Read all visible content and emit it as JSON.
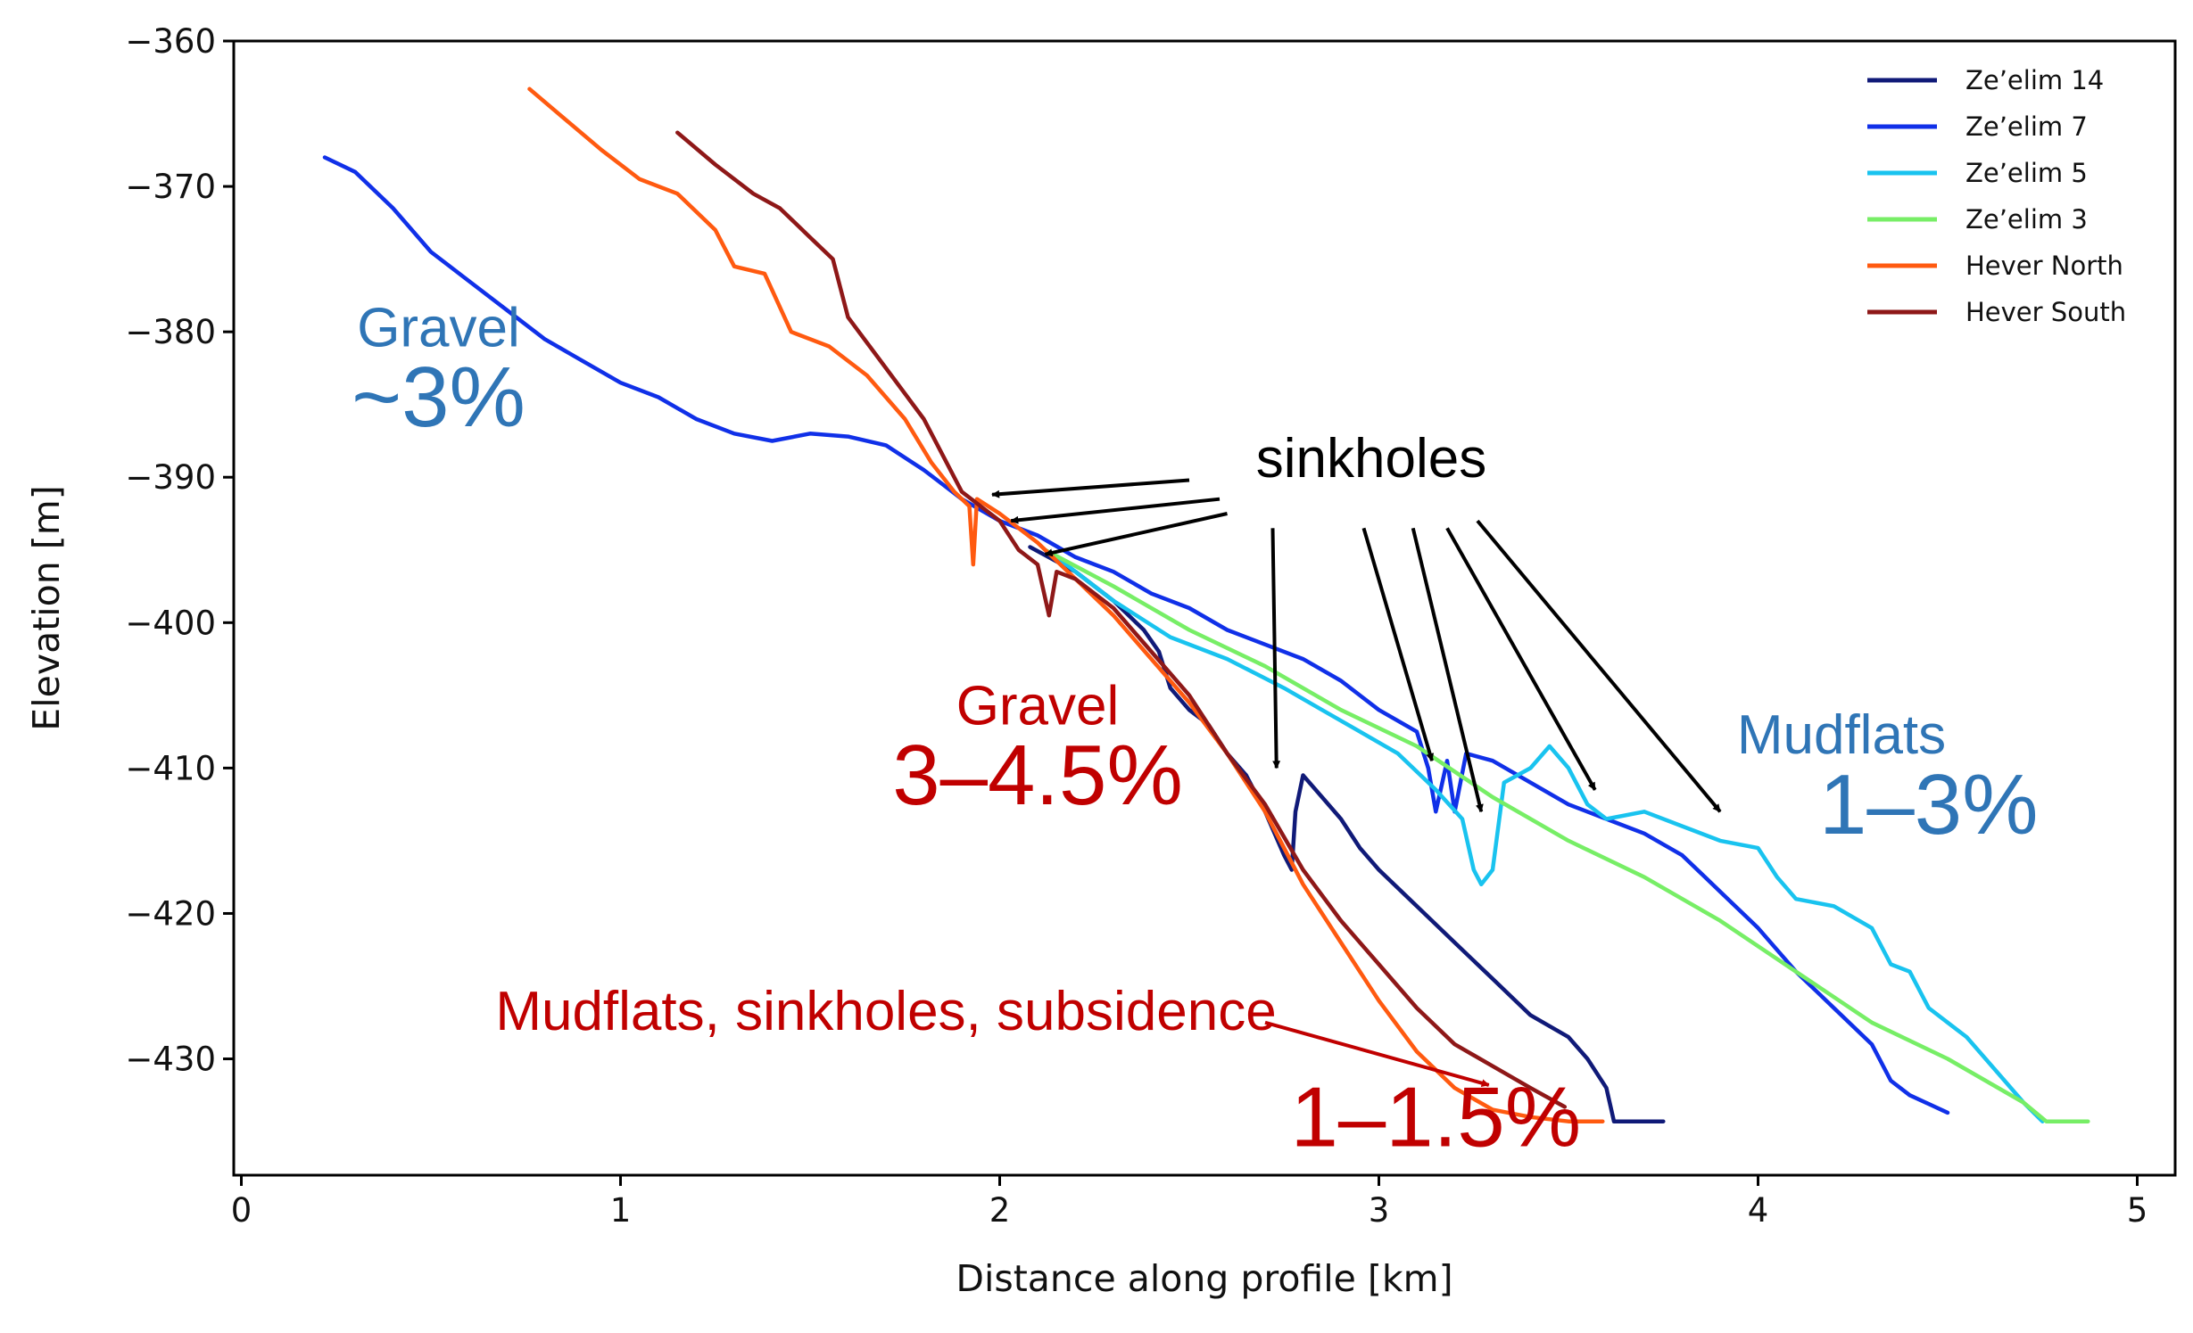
{
  "chart_data": {
    "type": "line",
    "title": "",
    "xlabel": "Distance along profile [km]",
    "ylabel": "Elevation [m]",
    "xlim": [
      -0.02,
      5.1
    ],
    "ylim": [
      -438,
      -360
    ],
    "xticks": [
      0,
      1,
      2,
      3,
      4,
      5
    ],
    "yticks": [
      -360,
      -370,
      -380,
      -390,
      -400,
      -410,
      -420,
      -430
    ],
    "xtick_labels": [
      "0",
      "1",
      "2",
      "3",
      "4",
      "5"
    ],
    "ytick_labels": [
      "−360",
      "−370",
      "−380",
      "−390",
      "−400",
      "−410",
      "−420",
      "−430"
    ],
    "grid": false,
    "legend_position": "top-right",
    "series": [
      {
        "name": "Ze’elim 14",
        "color": "#101a78",
        "points": [
          [
            2.08,
            -394.8
          ],
          [
            2.2,
            -396.5
          ],
          [
            2.3,
            -398.5
          ],
          [
            2.38,
            -400.5
          ],
          [
            2.42,
            -402
          ],
          [
            2.45,
            -404.5
          ],
          [
            2.5,
            -406
          ],
          [
            2.55,
            -407
          ],
          [
            2.6,
            -409
          ],
          [
            2.65,
            -410.5
          ],
          [
            2.7,
            -413
          ],
          [
            2.75,
            -416
          ],
          [
            2.77,
            -417
          ],
          [
            2.78,
            -413
          ],
          [
            2.8,
            -410.5
          ],
          [
            2.85,
            -412
          ],
          [
            2.9,
            -413.5
          ],
          [
            2.95,
            -415.5
          ],
          [
            3.0,
            -417
          ],
          [
            3.1,
            -419.5
          ],
          [
            3.2,
            -422
          ],
          [
            3.3,
            -424.5
          ],
          [
            3.4,
            -427
          ],
          [
            3.5,
            -428.5
          ],
          [
            3.55,
            -430
          ],
          [
            3.6,
            -432
          ],
          [
            3.62,
            -434.3
          ],
          [
            3.7,
            -434.3
          ],
          [
            3.75,
            -434.3
          ]
        ]
      },
      {
        "name": "Ze’elim 7",
        "color": "#1030e8",
        "points": [
          [
            0.22,
            -368
          ],
          [
            0.3,
            -369
          ],
          [
            0.4,
            -371.5
          ],
          [
            0.5,
            -374.5
          ],
          [
            0.6,
            -376.5
          ],
          [
            0.7,
            -378.5
          ],
          [
            0.8,
            -380.5
          ],
          [
            0.9,
            -382
          ],
          [
            1.0,
            -383.5
          ],
          [
            1.1,
            -384.5
          ],
          [
            1.2,
            -386
          ],
          [
            1.3,
            -387
          ],
          [
            1.4,
            -387.5
          ],
          [
            1.5,
            -387
          ],
          [
            1.6,
            -387.2
          ],
          [
            1.7,
            -387.8
          ],
          [
            1.8,
            -389.5
          ],
          [
            1.85,
            -390.5
          ],
          [
            1.9,
            -391.5
          ],
          [
            2.0,
            -393
          ],
          [
            2.1,
            -394
          ],
          [
            2.2,
            -395.5
          ],
          [
            2.3,
            -396.5
          ],
          [
            2.4,
            -398
          ],
          [
            2.5,
            -399
          ],
          [
            2.6,
            -400.5
          ],
          [
            2.7,
            -401.5
          ],
          [
            2.8,
            -402.5
          ],
          [
            2.9,
            -404
          ],
          [
            3.0,
            -406
          ],
          [
            3.1,
            -407.5
          ],
          [
            3.13,
            -410
          ],
          [
            3.15,
            -413
          ],
          [
            3.18,
            -409.5
          ],
          [
            3.2,
            -413
          ],
          [
            3.23,
            -409
          ],
          [
            3.3,
            -409.5
          ],
          [
            3.4,
            -411
          ],
          [
            3.5,
            -412.5
          ],
          [
            3.6,
            -413.5
          ],
          [
            3.7,
            -414.5
          ],
          [
            3.8,
            -416
          ],
          [
            3.9,
            -418.5
          ],
          [
            4.0,
            -421
          ],
          [
            4.1,
            -424
          ],
          [
            4.2,
            -426.5
          ],
          [
            4.3,
            -429
          ],
          [
            4.35,
            -431.5
          ],
          [
            4.4,
            -432.5
          ],
          [
            4.5,
            -433.7
          ]
        ]
      },
      {
        "name": "Ze’elim 5",
        "color": "#19c3ef",
        "points": [
          [
            2.15,
            -395.5
          ],
          [
            2.3,
            -398.5
          ],
          [
            2.45,
            -401
          ],
          [
            2.6,
            -402.5
          ],
          [
            2.75,
            -404.5
          ],
          [
            2.85,
            -406
          ],
          [
            2.95,
            -407.5
          ],
          [
            3.05,
            -409
          ],
          [
            3.15,
            -411.5
          ],
          [
            3.22,
            -413.5
          ],
          [
            3.25,
            -417
          ],
          [
            3.27,
            -418
          ],
          [
            3.3,
            -417
          ],
          [
            3.33,
            -411
          ],
          [
            3.4,
            -410
          ],
          [
            3.45,
            -408.5
          ],
          [
            3.5,
            -410
          ],
          [
            3.55,
            -412.5
          ],
          [
            3.6,
            -413.5
          ],
          [
            3.7,
            -413
          ],
          [
            3.8,
            -414
          ],
          [
            3.9,
            -415
          ],
          [
            4.0,
            -415.5
          ],
          [
            4.05,
            -417.5
          ],
          [
            4.1,
            -419
          ],
          [
            4.2,
            -419.5
          ],
          [
            4.3,
            -421
          ],
          [
            4.35,
            -423.5
          ],
          [
            4.4,
            -424
          ],
          [
            4.45,
            -426.5
          ],
          [
            4.5,
            -427.5
          ],
          [
            4.55,
            -428.5
          ],
          [
            4.6,
            -430
          ],
          [
            4.65,
            -431.5
          ],
          [
            4.7,
            -433
          ],
          [
            4.75,
            -434.3
          ]
        ]
      },
      {
        "name": "Ze’elim 3",
        "color": "#77ee66",
        "points": [
          [
            2.12,
            -395
          ],
          [
            2.3,
            -397.5
          ],
          [
            2.5,
            -400.5
          ],
          [
            2.7,
            -403
          ],
          [
            2.9,
            -406
          ],
          [
            3.1,
            -408.5
          ],
          [
            3.3,
            -412
          ],
          [
            3.5,
            -415
          ],
          [
            3.7,
            -417.5
          ],
          [
            3.9,
            -420.5
          ],
          [
            4.1,
            -424
          ],
          [
            4.3,
            -427.5
          ],
          [
            4.5,
            -430
          ],
          [
            4.6,
            -431.5
          ],
          [
            4.7,
            -433
          ],
          [
            4.76,
            -434.3
          ],
          [
            4.87,
            -434.3
          ]
        ]
      },
      {
        "name": "Hever North",
        "color": "#ff5a10",
        "points": [
          [
            0.76,
            -363.3
          ],
          [
            0.85,
            -365.3
          ],
          [
            0.95,
            -367.5
          ],
          [
            1.05,
            -369.5
          ],
          [
            1.15,
            -370.5
          ],
          [
            1.25,
            -373
          ],
          [
            1.3,
            -375.5
          ],
          [
            1.38,
            -376
          ],
          [
            1.45,
            -380
          ],
          [
            1.55,
            -381
          ],
          [
            1.65,
            -383
          ],
          [
            1.75,
            -386
          ],
          [
            1.82,
            -389
          ],
          [
            1.88,
            -391
          ],
          [
            1.92,
            -392
          ],
          [
            1.93,
            -396
          ],
          [
            1.94,
            -391.5
          ],
          [
            2.0,
            -392.5
          ],
          [
            2.1,
            -394.5
          ],
          [
            2.2,
            -397
          ],
          [
            2.3,
            -399.5
          ],
          [
            2.4,
            -402.5
          ],
          [
            2.5,
            -405.5
          ],
          [
            2.6,
            -409
          ],
          [
            2.7,
            -413
          ],
          [
            2.8,
            -418
          ],
          [
            2.9,
            -422
          ],
          [
            3.0,
            -426
          ],
          [
            3.1,
            -429.5
          ],
          [
            3.2,
            -432
          ],
          [
            3.3,
            -433.5
          ],
          [
            3.4,
            -434
          ],
          [
            3.5,
            -434.3
          ],
          [
            3.59,
            -434.3
          ]
        ]
      },
      {
        "name": "Hever South",
        "color": "#8e1818",
        "points": [
          [
            1.15,
            -366.3
          ],
          [
            1.25,
            -368.5
          ],
          [
            1.35,
            -370.5
          ],
          [
            1.42,
            -371.5
          ],
          [
            1.5,
            -373.5
          ],
          [
            1.56,
            -375
          ],
          [
            1.6,
            -379
          ],
          [
            1.7,
            -382.5
          ],
          [
            1.8,
            -386
          ],
          [
            1.85,
            -388.5
          ],
          [
            1.9,
            -391
          ],
          [
            2.0,
            -393
          ],
          [
            2.05,
            -395
          ],
          [
            2.1,
            -396
          ],
          [
            2.13,
            -399.5
          ],
          [
            2.15,
            -396.5
          ],
          [
            2.2,
            -397
          ],
          [
            2.3,
            -399
          ],
          [
            2.4,
            -402
          ],
          [
            2.5,
            -405
          ],
          [
            2.6,
            -409
          ],
          [
            2.7,
            -412.5
          ],
          [
            2.8,
            -417
          ],
          [
            2.9,
            -420.5
          ],
          [
            3.0,
            -423.5
          ],
          [
            3.1,
            -426.5
          ],
          [
            3.2,
            -429
          ],
          [
            3.3,
            -430.5
          ],
          [
            3.4,
            -432
          ],
          [
            3.49,
            -433.3
          ]
        ]
      }
    ],
    "annotations": [
      {
        "text": "Gravel",
        "color": "#2f75b6",
        "x": 0.52,
        "y": -381
      },
      {
        "text": "~3%",
        "color": "#2f75b6",
        "x": 0.52,
        "y": -386.5
      },
      {
        "text": "sinkholes",
        "color": "#000000",
        "x": 2.98,
        "y": -390
      },
      {
        "text": "Gravel",
        "color": "#c00000",
        "x": 2.1,
        "y": -407
      },
      {
        "text": "3–4.5%",
        "color": "#c00000",
        "x": 2.1,
        "y": -412.5
      },
      {
        "text": "Mudflats",
        "color": "#2f75b6",
        "x": 4.22,
        "y": -409
      },
      {
        "text": "1–3%",
        "color": "#2f75b6",
        "x": 4.45,
        "y": -414.5
      },
      {
        "text": "Mudflats, sinkholes, subsidence",
        "color": "#c00000",
        "x": 1.7,
        "y": -428
      },
      {
        "text": "1–1.5%",
        "color": "#c00000",
        "x": 3.15,
        "y": -436
      }
    ],
    "arrows": [
      {
        "color": "#000000",
        "from": [
          2.5,
          -390.2
        ],
        "to": [
          1.98,
          -391.2
        ]
      },
      {
        "color": "#000000",
        "from": [
          2.58,
          -391.5
        ],
        "to": [
          2.03,
          -393
        ]
      },
      {
        "color": "#000000",
        "from": [
          2.6,
          -392.5
        ],
        "to": [
          2.12,
          -395.3
        ]
      },
      {
        "color": "#000000",
        "from": [
          2.72,
          -393.5
        ],
        "to": [
          2.73,
          -410
        ]
      },
      {
        "color": "#000000",
        "from": [
          2.96,
          -393.5
        ],
        "to": [
          3.14,
          -409.5
        ]
      },
      {
        "color": "#000000",
        "from": [
          3.09,
          -393.5
        ],
        "to": [
          3.27,
          -413
        ]
      },
      {
        "color": "#000000",
        "from": [
          3.18,
          -393.5
        ],
        "to": [
          3.57,
          -411.5
        ]
      },
      {
        "color": "#000000",
        "from": [
          3.26,
          -393
        ],
        "to": [
          3.9,
          -413
        ]
      },
      {
        "color": "#c00000",
        "from": [
          2.7,
          -427.5
        ],
        "to": [
          3.29,
          -431.8
        ]
      }
    ]
  }
}
